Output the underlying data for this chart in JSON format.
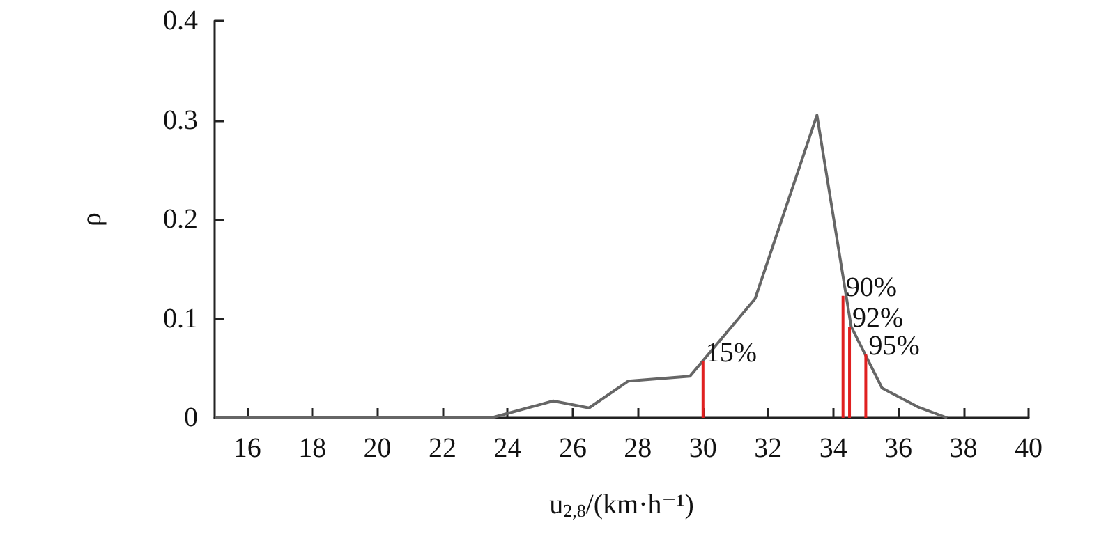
{
  "chart_data": {
    "type": "line",
    "xlabel": "u$_{2,8}$/(km·h⁻¹)",
    "ylabel": "ρ",
    "xlim": [
      15,
      40
    ],
    "xticks": [
      16,
      18,
      20,
      22,
      24,
      26,
      28,
      30,
      32,
      34,
      36,
      38,
      40
    ],
    "ylim": [
      0,
      0.4
    ],
    "yticks": [
      0,
      0.1,
      0.2,
      0.3,
      0.4
    ],
    "grid": false,
    "marker": "none",
    "line_style": "solid",
    "series": [
      {
        "color": "#666666",
        "x": [
          15,
          23.5,
          25.4,
          26.5,
          27.7,
          29.6,
          31.6,
          33.5,
          34.55,
          35.5,
          36.6,
          37.5
        ],
        "values": [
          0,
          0,
          0.017,
          0.01,
          0.037,
          0.042,
          0.12,
          0.305,
          0.092,
          0.03,
          0.011,
          0
        ]
      },
      {
        "type": "bar",
        "color": "#e02020",
        "x": [
          30,
          34.3,
          34.5,
          35
        ],
        "values": [
          0.057,
          0.123,
          0.092,
          0.064
        ]
      }
    ],
    "annotations": [
      {
        "text": "15%",
        "x": 30,
        "y": 0.057
      },
      {
        "text": "90%",
        "x": 34.3,
        "y": 0.123
      },
      {
        "text": "92%",
        "x": 34.5,
        "y": 0.092
      },
      {
        "text": "95%",
        "x": 35,
        "y": 0.064
      }
    ]
  }
}
